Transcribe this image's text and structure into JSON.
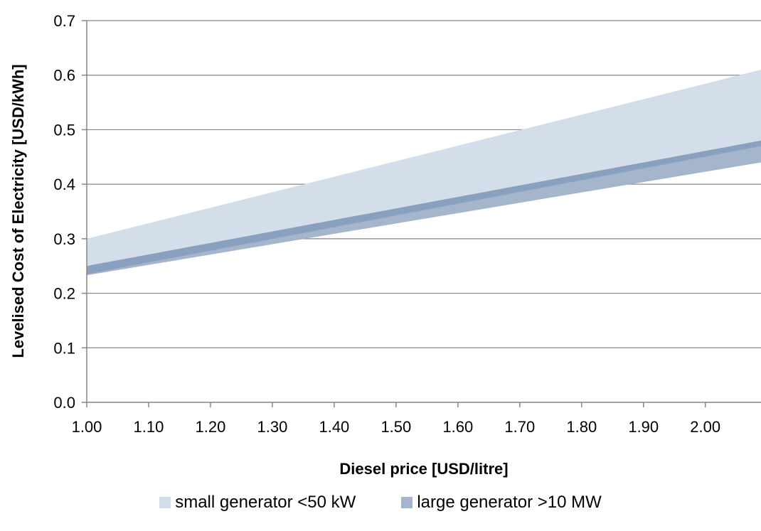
{
  "chart_data": {
    "type": "area",
    "xlabel": "Diesel price [USD/litre]",
    "ylabel": "Levelised Cost of Electricity [USD/kWh]",
    "xlim": [
      1.0,
      2.09
    ],
    "ylim": [
      0.0,
      0.7
    ],
    "x_ticks": [
      "1.00",
      "1.10",
      "1.20",
      "1.30",
      "1.40",
      "1.50",
      "1.60",
      "1.70",
      "1.80",
      "1.90",
      "2.00"
    ],
    "y_ticks": [
      "0.0",
      "0.1",
      "0.2",
      "0.3",
      "0.4",
      "0.5",
      "0.6",
      "0.7"
    ],
    "grid": "horizontal",
    "legend_position": "bottom",
    "series": [
      {
        "name": "small generator <50 kW",
        "color": "#d3deea",
        "x": [
          1.0,
          2.09
        ],
        "lower": [
          0.235,
          0.47
        ],
        "upper": [
          0.3,
          0.61
        ]
      },
      {
        "name": "large generator >10 MW",
        "color": "#a5b5cc",
        "x": [
          1.0,
          2.09
        ],
        "lower": [
          0.233,
          0.44
        ],
        "upper": [
          0.25,
          0.48
        ]
      }
    ],
    "overlap_color": "#8aa0bf"
  }
}
